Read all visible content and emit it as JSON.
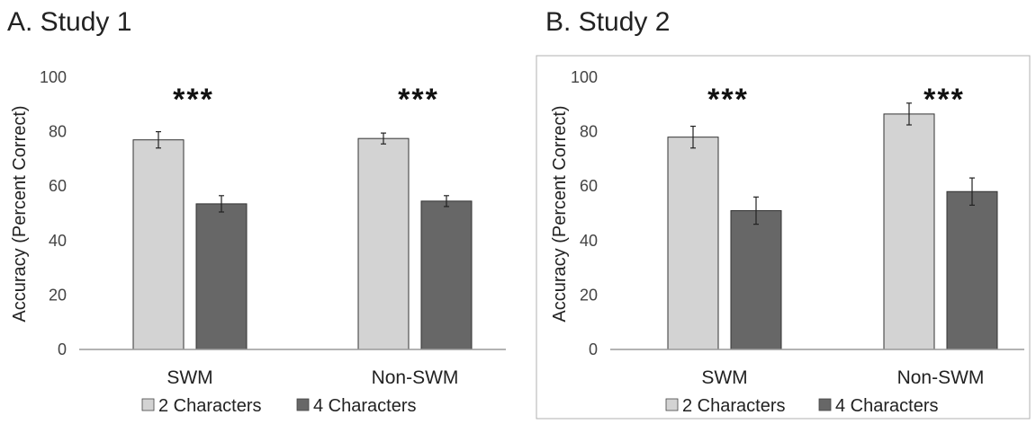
{
  "colors": {
    "series1": "#d3d3d3",
    "series2": "#676767",
    "axis": "#9a9a9a",
    "frame": "#b0b0b0"
  },
  "chart_data": [
    {
      "type": "bar",
      "title": "A. Study 1",
      "ylabel": "Accuracy (Percent Correct)",
      "categories": [
        "SWM",
        "Non-SWM"
      ],
      "ylim": [
        0,
        100
      ],
      "yticks": [
        0,
        20,
        40,
        60,
        80,
        100
      ],
      "series": [
        {
          "name": "2 Characters",
          "values": [
            77,
            77.5
          ],
          "errors": [
            3,
            2
          ]
        },
        {
          "name": "4 Characters",
          "values": [
            53.5,
            54.5
          ],
          "errors": [
            3,
            2
          ]
        }
      ],
      "annotations": [
        "***",
        "***"
      ],
      "legend": "bottom",
      "grid": false
    },
    {
      "type": "bar",
      "title": "B. Study 2",
      "ylabel": "Accuracy (Percent Correct)",
      "categories": [
        "SWM",
        "Non-SWM"
      ],
      "ylim": [
        0,
        100
      ],
      "yticks": [
        0,
        20,
        40,
        60,
        80,
        100
      ],
      "series": [
        {
          "name": "2 Characters",
          "values": [
            78,
            86.5
          ],
          "errors": [
            4,
            4
          ]
        },
        {
          "name": "4 Characters",
          "values": [
            51,
            58
          ],
          "errors": [
            5,
            5
          ]
        }
      ],
      "annotations": [
        "***",
        "***"
      ],
      "legend": "bottom",
      "grid": false
    }
  ]
}
